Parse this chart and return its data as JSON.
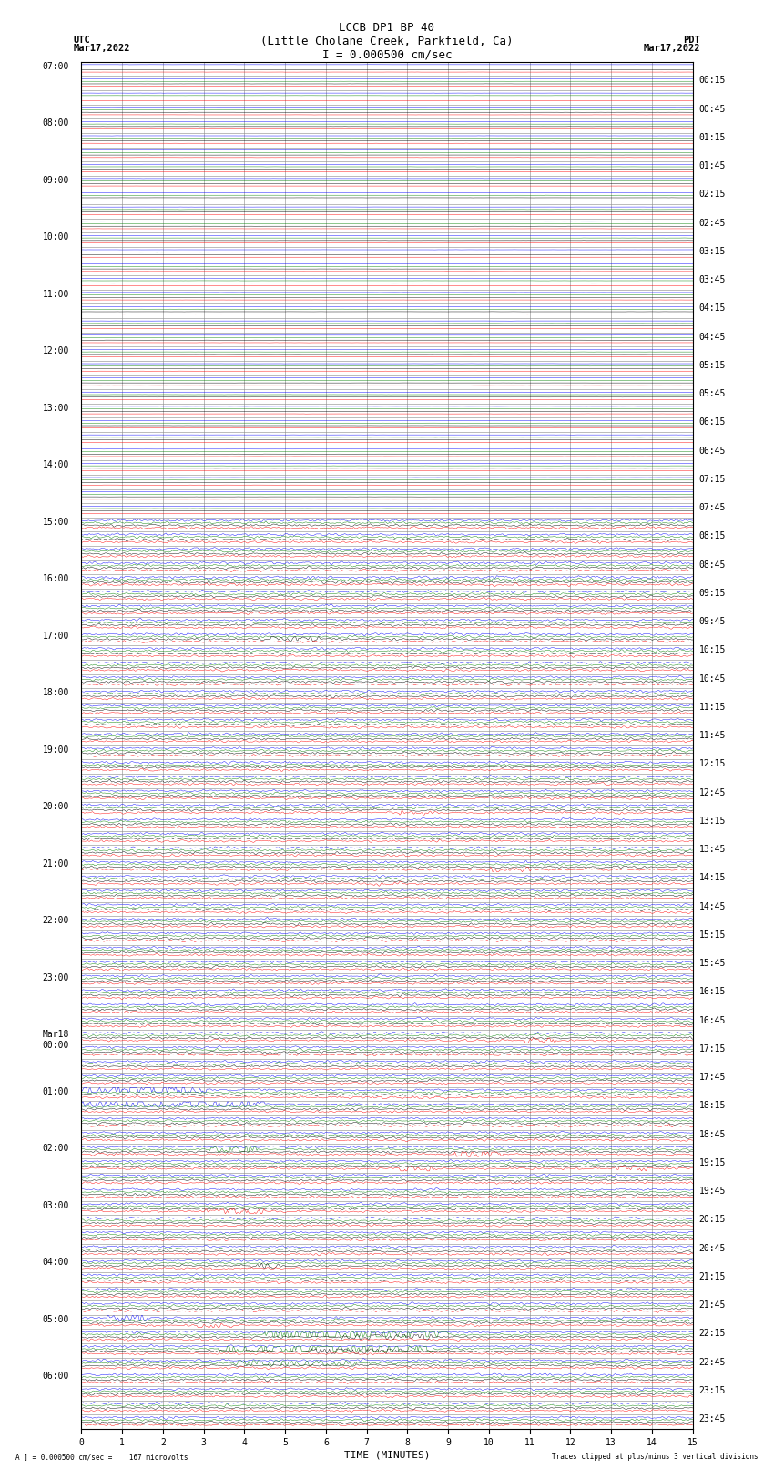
{
  "title_line1": "LCCB DP1 BP 40",
  "title_line2": "(Little Cholane Creek, Parkfield, Ca)",
  "title_line3": "I = 0.000500 cm/sec",
  "left_label_top": "UTC",
  "left_label_date": "Mar17,2022",
  "right_label_top": "PDT",
  "right_label_date": "Mar17,2022",
  "xlabel": "TIME (MINUTES)",
  "bottom_left_text": "A ] = 0.000500 cm/sec =    167 microvolts",
  "bottom_right_text": "Traces clipped at plus/minus 3 vertical divisions",
  "utc_hour_labels": [
    "07:00",
    "08:00",
    "09:00",
    "10:00",
    "11:00",
    "12:00",
    "13:00",
    "14:00",
    "15:00",
    "16:00",
    "17:00",
    "18:00",
    "19:00",
    "20:00",
    "21:00",
    "22:00",
    "23:00",
    "Mar18\n00:00",
    "01:00",
    "02:00",
    "03:00",
    "04:00",
    "05:00",
    "06:00"
  ],
  "utc_hour_rows": [
    0,
    4,
    8,
    12,
    16,
    20,
    24,
    28,
    32,
    36,
    40,
    44,
    48,
    52,
    56,
    60,
    64,
    68,
    72,
    76,
    80,
    84,
    88,
    92
  ],
  "pdt_labels": [
    "00:15",
    "00:45",
    "01:15",
    "01:45",
    "02:15",
    "02:45",
    "03:15",
    "03:45",
    "04:15",
    "04:45",
    "05:15",
    "05:45",
    "06:15",
    "06:45",
    "07:15",
    "07:45",
    "08:15",
    "08:45",
    "09:15",
    "09:45",
    "10:15",
    "10:45",
    "11:15",
    "11:45",
    "12:15",
    "12:45",
    "13:15",
    "13:45",
    "14:15",
    "14:45",
    "15:15",
    "15:45",
    "16:15",
    "16:45",
    "17:15",
    "17:45",
    "18:15",
    "18:45",
    "19:15",
    "19:45",
    "20:15",
    "20:45",
    "21:15",
    "21:45",
    "22:15",
    "22:45",
    "23:15",
    "23:45"
  ],
  "pdt_label_rows": [
    1,
    3,
    5,
    7,
    9,
    11,
    13,
    15,
    17,
    19,
    21,
    23,
    25,
    27,
    29,
    31,
    33,
    35,
    37,
    39,
    41,
    43,
    45,
    47,
    49,
    51,
    53,
    55,
    57,
    59,
    61,
    63,
    65,
    67,
    69,
    71,
    73,
    75,
    77,
    79,
    81,
    83,
    85,
    87,
    89,
    91,
    93,
    95
  ],
  "trace_colors": [
    "blue",
    "green",
    "black",
    "red"
  ],
  "n_rows": 96,
  "n_minutes": 15,
  "fig_width": 8.5,
  "fig_height": 16.13,
  "bg_color": "white",
  "grid_color": "#888888",
  "axis_color": "black",
  "font_size_title": 9,
  "font_size_labels": 7.5,
  "font_size_ticks": 7,
  "font_size_bottom": 7
}
